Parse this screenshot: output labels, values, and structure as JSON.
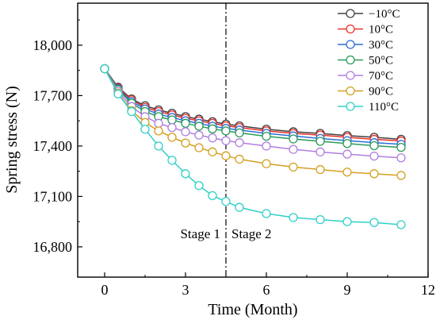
{
  "chart_data": {
    "type": "line",
    "xlabel": "Time (Month)",
    "ylabel": "Spring stress (N)",
    "xlim": [
      -1,
      12
    ],
    "ylim": [
      16620,
      18250
    ],
    "x_ticks": [
      0,
      3,
      6,
      9,
      12
    ],
    "x_tick_labels": [
      "0",
      "3",
      "6",
      "9",
      "12"
    ],
    "y_ticks": [
      16800,
      17100,
      17400,
      17700,
      18000
    ],
    "y_tick_labels": [
      "16,800",
      "17,100",
      "17,400",
      "17,700",
      "18,000"
    ],
    "legend_position": "top-right",
    "x": [
      0,
      0.5,
      1,
      1.5,
      2,
      2.5,
      3,
      3.5,
      4,
      4.5,
      5,
      6,
      7,
      8,
      9,
      10,
      11
    ],
    "series": [
      {
        "name": "−10°C",
        "color": "#404040",
        "values": [
          17860,
          17750,
          17680,
          17640,
          17615,
          17595,
          17575,
          17560,
          17545,
          17530,
          17520,
          17500,
          17485,
          17475,
          17462,
          17452,
          17440
        ]
      },
      {
        "name": "10°C",
        "color": "#e8332a",
        "values": [
          17860,
          17745,
          17675,
          17630,
          17605,
          17585,
          17565,
          17550,
          17535,
          17520,
          17510,
          17490,
          17475,
          17465,
          17452,
          17440,
          17430
        ]
      },
      {
        "name": "30°C",
        "color": "#2a6fd6",
        "values": [
          17860,
          17740,
          17665,
          17620,
          17590,
          17570,
          17550,
          17535,
          17518,
          17505,
          17495,
          17475,
          17460,
          17445,
          17432,
          17420,
          17410
        ]
      },
      {
        "name": "50°C",
        "color": "#2a9a5a",
        "values": [
          17860,
          17735,
          17655,
          17605,
          17575,
          17555,
          17535,
          17518,
          17502,
          17490,
          17478,
          17458,
          17442,
          17428,
          17415,
          17402,
          17392
        ]
      },
      {
        "name": "70°C",
        "color": "#b07ee0",
        "values": [
          17860,
          17725,
          17635,
          17575,
          17535,
          17510,
          17485,
          17465,
          17448,
          17432,
          17420,
          17400,
          17380,
          17365,
          17352,
          17340,
          17330
        ]
      },
      {
        "name": "90°C",
        "color": "#d4a020",
        "values": [
          17860,
          17715,
          17610,
          17540,
          17490,
          17452,
          17418,
          17390,
          17365,
          17342,
          17322,
          17295,
          17275,
          17260,
          17245,
          17235,
          17225
        ]
      },
      {
        "name": "110°C",
        "color": "#30d0c8",
        "values": [
          17860,
          17710,
          17605,
          17500,
          17400,
          17315,
          17235,
          17165,
          17105,
          17070,
          17035,
          16998,
          16975,
          16962,
          16950,
          16945,
          16932
        ]
      }
    ],
    "divider_x": 4.5,
    "annotations": [
      "Stage 1",
      "Stage 2"
    ]
  }
}
